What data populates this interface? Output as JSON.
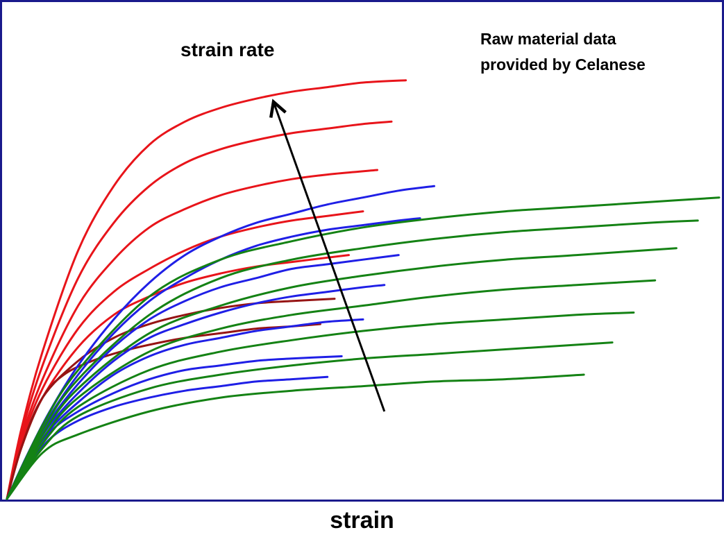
{
  "chart_data": {
    "type": "line",
    "title": "",
    "xlabel": "strain",
    "ylabel": "",
    "xlim": [
      0,
      1
    ],
    "ylim": [
      0,
      1
    ],
    "grid": false,
    "legend": "none",
    "annotations": [
      {
        "id": "source",
        "lines": [
          "Raw material data",
          "provided by Celanese"
        ]
      },
      {
        "id": "arrow",
        "text": "strain rate",
        "direction": "increasing toward upper curves"
      }
    ],
    "colors": {
      "frame": "#1a1a8c",
      "red": "#e8141a",
      "darkred": "#961414",
      "blue": "#1f1fe6",
      "green": "#148214",
      "arrow": "#000000"
    },
    "series": [
      {
        "color": "red",
        "x": [
          0,
          0.02,
          0.05,
          0.1,
          0.15,
          0.2,
          0.25,
          0.3,
          0.35,
          0.4,
          0.45,
          0.5,
          0.56
        ],
        "y": [
          0,
          0.15,
          0.32,
          0.54,
          0.68,
          0.77,
          0.82,
          0.85,
          0.87,
          0.885,
          0.895,
          0.905,
          0.91
        ]
      },
      {
        "color": "red",
        "x": [
          0,
          0.02,
          0.05,
          0.1,
          0.15,
          0.2,
          0.25,
          0.3,
          0.35,
          0.4,
          0.45,
          0.5,
          0.54
        ],
        "y": [
          0,
          0.14,
          0.29,
          0.48,
          0.6,
          0.68,
          0.73,
          0.76,
          0.78,
          0.795,
          0.805,
          0.815,
          0.82
        ]
      },
      {
        "color": "red",
        "x": [
          0,
          0.02,
          0.05,
          0.1,
          0.15,
          0.2,
          0.25,
          0.3,
          0.35,
          0.4,
          0.45,
          0.52
        ],
        "y": [
          0,
          0.13,
          0.26,
          0.42,
          0.52,
          0.59,
          0.63,
          0.66,
          0.68,
          0.695,
          0.705,
          0.715
        ]
      },
      {
        "color": "red",
        "x": [
          0,
          0.02,
          0.05,
          0.1,
          0.15,
          0.2,
          0.25,
          0.3,
          0.35,
          0.4,
          0.45,
          0.5
        ],
        "y": [
          0,
          0.12,
          0.24,
          0.37,
          0.45,
          0.5,
          0.54,
          0.57,
          0.59,
          0.605,
          0.615,
          0.625
        ]
      },
      {
        "color": "red",
        "x": [
          0,
          0.02,
          0.05,
          0.1,
          0.15,
          0.2,
          0.25,
          0.3,
          0.35,
          0.4,
          0.48
        ],
        "y": [
          0,
          0.11,
          0.22,
          0.33,
          0.4,
          0.44,
          0.47,
          0.49,
          0.505,
          0.515,
          0.53
        ]
      },
      {
        "color": "darkred",
        "x": [
          0,
          0.02,
          0.05,
          0.1,
          0.15,
          0.2,
          0.25,
          0.3,
          0.35,
          0.4,
          0.46
        ],
        "y": [
          0,
          0.11,
          0.22,
          0.3,
          0.35,
          0.38,
          0.4,
          0.415,
          0.425,
          0.43,
          0.435
        ]
      },
      {
        "color": "darkred",
        "x": [
          0,
          0.02,
          0.05,
          0.08,
          0.12,
          0.16,
          0.2,
          0.25,
          0.3,
          0.35,
          0.4,
          0.44
        ],
        "y": [
          0,
          0.11,
          0.22,
          0.27,
          0.3,
          0.32,
          0.335,
          0.35,
          0.36,
          0.37,
          0.375,
          0.38
        ]
      },
      {
        "color": "blue",
        "x": [
          0,
          0.03,
          0.06,
          0.1,
          0.15,
          0.2,
          0.25,
          0.3,
          0.35,
          0.4,
          0.45,
          0.5,
          0.55,
          0.6
        ],
        "y": [
          0,
          0.1,
          0.19,
          0.29,
          0.39,
          0.47,
          0.53,
          0.57,
          0.6,
          0.62,
          0.64,
          0.655,
          0.67,
          0.68
        ]
      },
      {
        "color": "blue",
        "x": [
          0,
          0.03,
          0.06,
          0.1,
          0.15,
          0.2,
          0.25,
          0.3,
          0.35,
          0.4,
          0.45,
          0.5,
          0.55,
          0.58
        ],
        "y": [
          0,
          0.095,
          0.18,
          0.27,
          0.36,
          0.43,
          0.48,
          0.52,
          0.55,
          0.57,
          0.585,
          0.595,
          0.605,
          0.61
        ]
      },
      {
        "color": "blue",
        "x": [
          0,
          0.03,
          0.06,
          0.1,
          0.15,
          0.2,
          0.25,
          0.3,
          0.35,
          0.4,
          0.45,
          0.5,
          0.55
        ],
        "y": [
          0,
          0.09,
          0.17,
          0.25,
          0.33,
          0.39,
          0.43,
          0.46,
          0.48,
          0.5,
          0.51,
          0.52,
          0.53
        ]
      },
      {
        "color": "blue",
        "x": [
          0,
          0.03,
          0.06,
          0.1,
          0.15,
          0.2,
          0.25,
          0.3,
          0.35,
          0.4,
          0.45,
          0.5,
          0.53
        ],
        "y": [
          0,
          0.085,
          0.16,
          0.23,
          0.3,
          0.35,
          0.38,
          0.405,
          0.425,
          0.44,
          0.45,
          0.46,
          0.465
        ]
      },
      {
        "color": "blue",
        "x": [
          0,
          0.03,
          0.06,
          0.1,
          0.15,
          0.2,
          0.25,
          0.3,
          0.35,
          0.4,
          0.45,
          0.5
        ],
        "y": [
          0,
          0.08,
          0.15,
          0.21,
          0.27,
          0.31,
          0.335,
          0.35,
          0.365,
          0.375,
          0.385,
          0.39
        ]
      },
      {
        "color": "blue",
        "x": [
          0,
          0.03,
          0.06,
          0.1,
          0.15,
          0.2,
          0.25,
          0.3,
          0.35,
          0.4,
          0.47
        ],
        "y": [
          0,
          0.08,
          0.145,
          0.19,
          0.23,
          0.26,
          0.28,
          0.29,
          0.3,
          0.305,
          0.31
        ]
      },
      {
        "color": "blue",
        "x": [
          0,
          0.03,
          0.06,
          0.1,
          0.15,
          0.2,
          0.25,
          0.3,
          0.35,
          0.4,
          0.45
        ],
        "y": [
          0,
          0.07,
          0.13,
          0.17,
          0.2,
          0.22,
          0.235,
          0.245,
          0.255,
          0.26,
          0.265
        ]
      },
      {
        "color": "green",
        "x": [
          0,
          0.05,
          0.1,
          0.2,
          0.3,
          0.4,
          0.5,
          0.6,
          0.7,
          0.8,
          0.9,
          1.0
        ],
        "y": [
          0,
          0.16,
          0.28,
          0.44,
          0.52,
          0.56,
          0.59,
          0.61,
          0.625,
          0.635,
          0.645,
          0.655
        ]
      },
      {
        "color": "green",
        "x": [
          0,
          0.05,
          0.1,
          0.2,
          0.3,
          0.4,
          0.5,
          0.6,
          0.7,
          0.8,
          0.9,
          0.97
        ],
        "y": [
          0,
          0.15,
          0.26,
          0.4,
          0.48,
          0.52,
          0.545,
          0.565,
          0.58,
          0.59,
          0.6,
          0.605
        ]
      },
      {
        "color": "green",
        "x": [
          0,
          0.05,
          0.1,
          0.2,
          0.3,
          0.4,
          0.5,
          0.6,
          0.7,
          0.8,
          0.94
        ],
        "y": [
          0,
          0.14,
          0.24,
          0.36,
          0.42,
          0.46,
          0.485,
          0.505,
          0.52,
          0.53,
          0.545
        ]
      },
      {
        "color": "green",
        "x": [
          0,
          0.05,
          0.1,
          0.2,
          0.3,
          0.4,
          0.5,
          0.6,
          0.7,
          0.8,
          0.91
        ],
        "y": [
          0,
          0.13,
          0.22,
          0.32,
          0.37,
          0.4,
          0.42,
          0.44,
          0.455,
          0.465,
          0.475
        ]
      },
      {
        "color": "green",
        "x": [
          0,
          0.05,
          0.1,
          0.2,
          0.3,
          0.4,
          0.5,
          0.6,
          0.7,
          0.8,
          0.88
        ],
        "y": [
          0,
          0.12,
          0.2,
          0.28,
          0.32,
          0.345,
          0.365,
          0.38,
          0.39,
          0.4,
          0.405
        ]
      },
      {
        "color": "green",
        "x": [
          0,
          0.05,
          0.1,
          0.2,
          0.3,
          0.4,
          0.5,
          0.6,
          0.7,
          0.85
        ],
        "y": [
          0,
          0.11,
          0.18,
          0.24,
          0.27,
          0.29,
          0.305,
          0.315,
          0.325,
          0.34
        ]
      },
      {
        "color": "green",
        "x": [
          0,
          0.05,
          0.1,
          0.2,
          0.3,
          0.4,
          0.5,
          0.6,
          0.7,
          0.81
        ],
        "y": [
          0,
          0.1,
          0.14,
          0.19,
          0.22,
          0.235,
          0.245,
          0.255,
          0.26,
          0.27
        ]
      }
    ],
    "arrow": {
      "from": [
        0.53,
        0.19
      ],
      "to": [
        0.375,
        0.86
      ]
    }
  }
}
